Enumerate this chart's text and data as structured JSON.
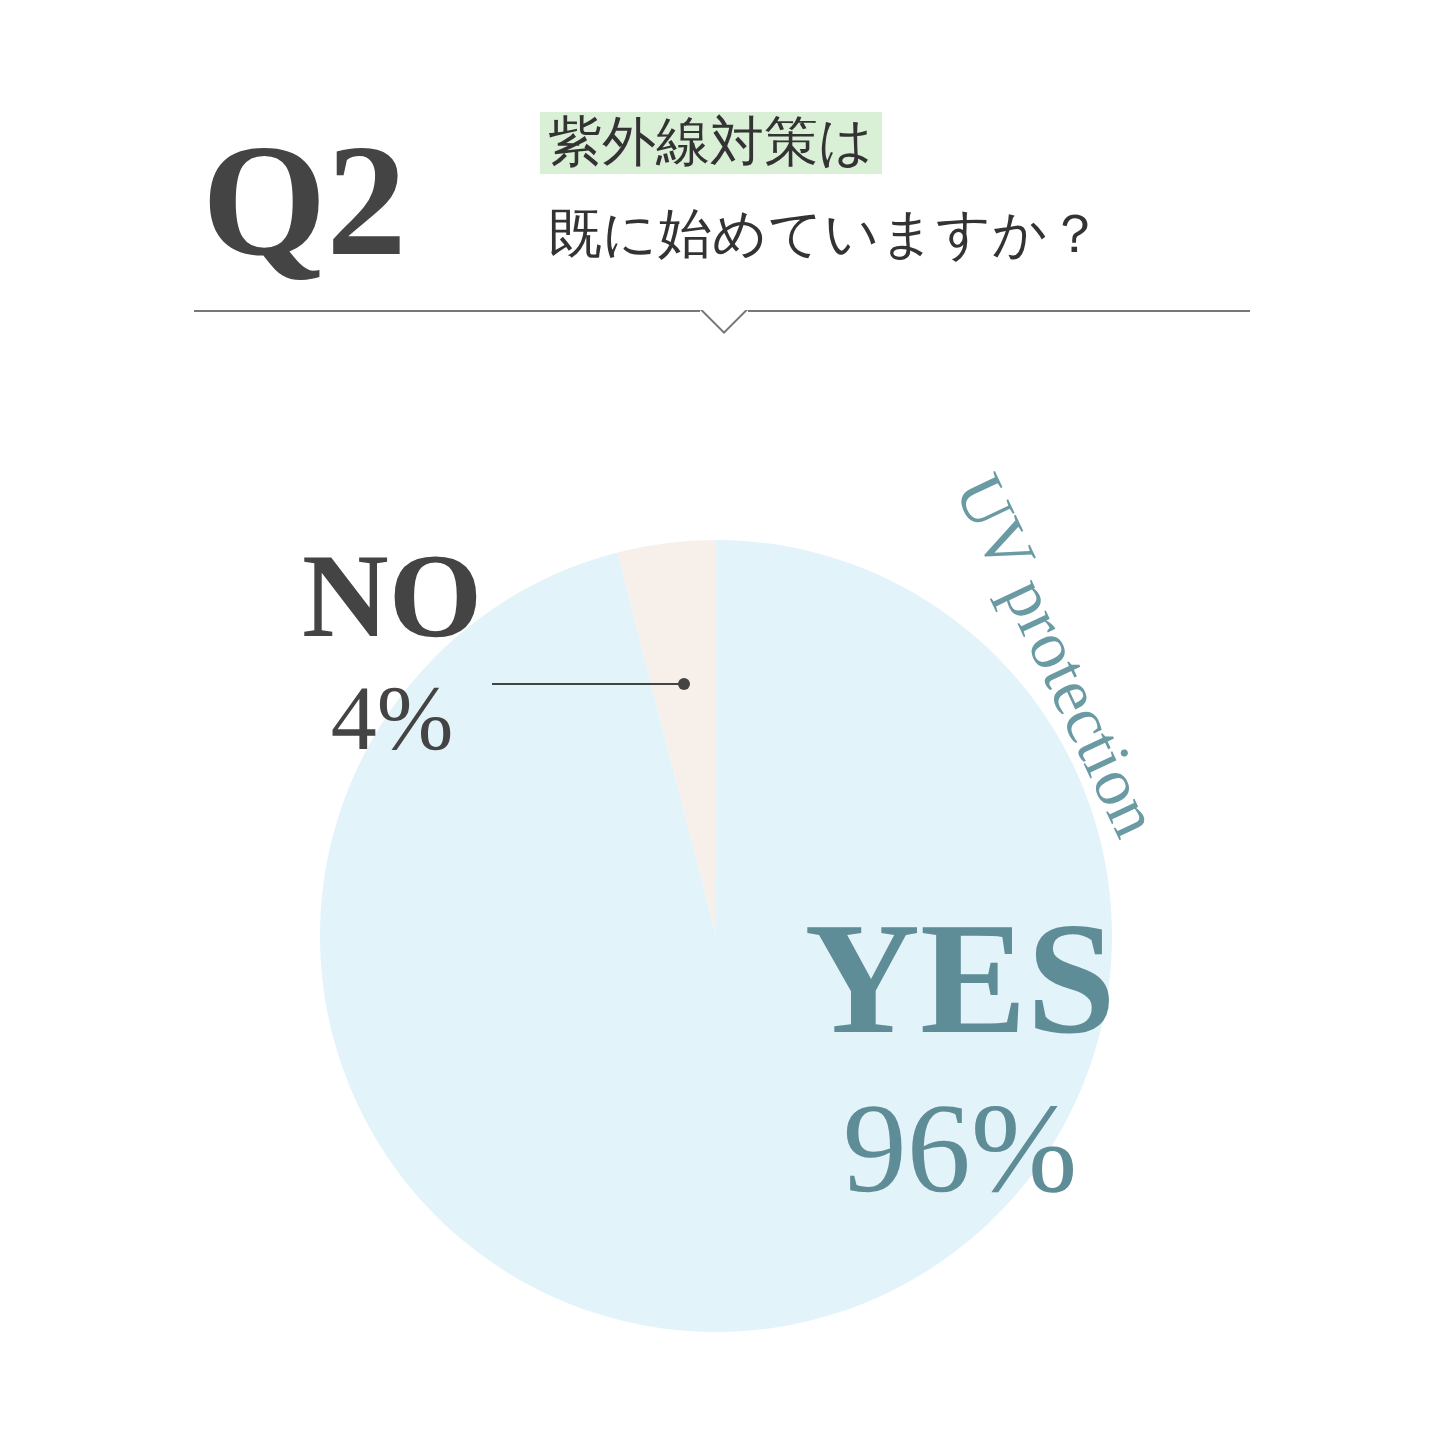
{
  "chart_data": {
    "type": "pie",
    "title": "Q2",
    "subtitle": "紫外線対策は",
    "categories": [
      "YES",
      "NO"
    ],
    "values": [
      96,
      4
    ],
    "value_labels": [
      "96%",
      "4%"
    ],
    "colors": [
      "#e3f3fa",
      "#f7efea"
    ],
    "annotations": [
      "既に始めていますか？",
      "UV protection"
    ]
  }
}
